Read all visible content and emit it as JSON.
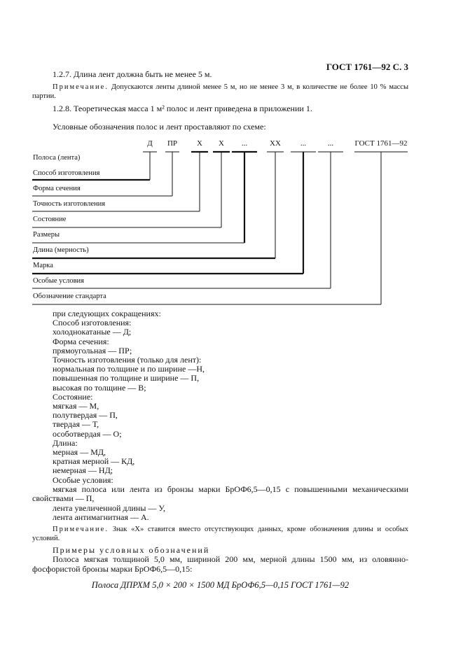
{
  "header": "ГОСТ 1761—92 С. 3",
  "p127": "1.2.7. Длина лент должна быть не менее 5 м.",
  "note1": {
    "label": "Примечание.",
    "text": " Допускаются ленты длиной менее 5 м, но не менее 3 м, в количестве не более 10 % массы партии."
  },
  "p128": "1.2.8. Теоретическая масса 1 м² полос и лент приведена в приложении 1.",
  "scheme_intro": "Условные обозначения полос и лент проставляют по схеме:",
  "codes": [
    "Д",
    "ПР",
    "Х",
    "Х",
    "...",
    "ХХ",
    "...",
    "...",
    "ГОСТ 1761—92"
  ],
  "labels": [
    "Полоса (лента)",
    "Способ изготовления",
    "Форма сечения",
    "Точность изготовления",
    "Состояние",
    "Размеры",
    "Длина (мерность)",
    "Марка",
    "Особые условия",
    "Обозначение стандарта"
  ],
  "list": [
    "при следующих сокращениях:",
    "Способ изготовления:",
    "холоднокатаные — Д;",
    "Форма сечения:",
    "прямоугольная — ПР;",
    "Точность изготовления (только для лент):",
    "нормальная по толщине и по ширине —Н,",
    "повышенная по толщине и ширине — П,",
    "высокая по толщине — В;",
    "Состояние:",
    "мягкая — М,",
    "полутвердая — П,",
    "твердая — Т,",
    "особотвердая — О;",
    "Длина:",
    "мерная — МД,",
    "кратная мерной — КД,",
    "немерная — НД;",
    "Особые условия:"
  ],
  "special": "мягкая полоса или лента из бронзы марки БрОФ6,5—0,15 с повышенными механическими свойствами — П,",
  "special2": "лента увеличенной длины — У,",
  "special3": "лента антимагнитная — А.",
  "note2": {
    "label": "Примечание.",
    "text": " Знак «Х» ставится вместо отсутствующих данных, кроме обозначения длины и особых условий."
  },
  "examples_title": "Примеры условных обозначений",
  "example_text": "Полоса мягкая толщиной 5,0 мм, шириной 200 мм, мерной длины 1500 мм, из оловянно-фосфористой бронзы марки БрОФ6,5—0,15:",
  "example_designation": "Полоса ДПРХМ 5,0 × 200 × 1500 МД БрОФ6,5—0,15 ГОСТ 1761—92"
}
